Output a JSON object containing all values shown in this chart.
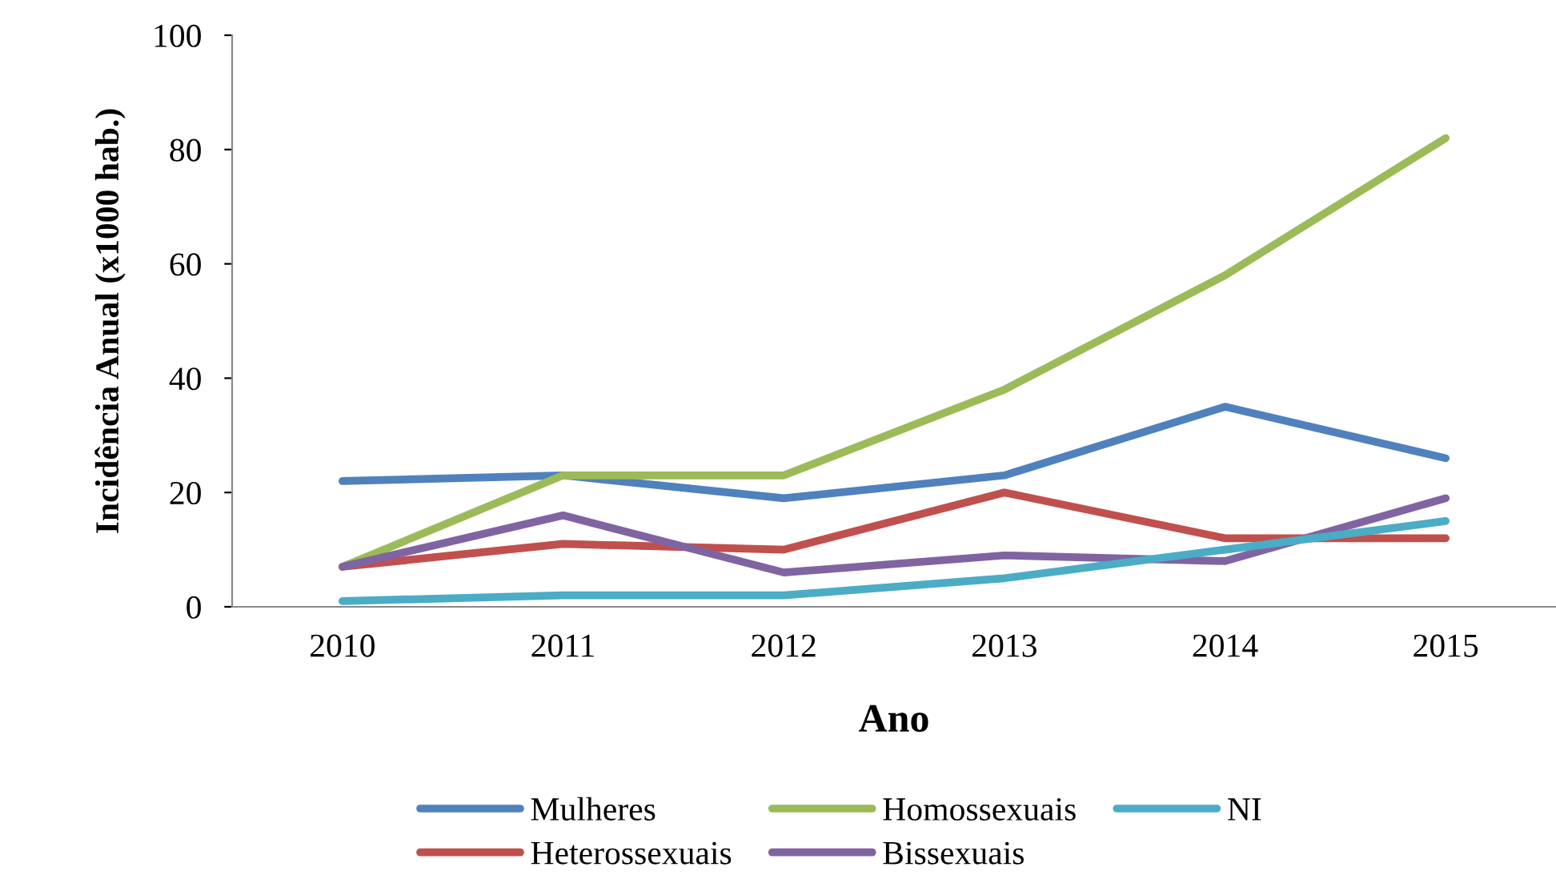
{
  "chart_data": {
    "type": "line",
    "xlabel": "Ano",
    "ylabel": "Incidência Anual (x1000 hab.)",
    "categories": [
      "2010",
      "2011",
      "2012",
      "2013",
      "2014",
      "2015"
    ],
    "series": [
      {
        "name": "Mulheres",
        "color": "#4f81bd",
        "values": [
          22,
          23,
          19,
          23,
          35,
          26
        ]
      },
      {
        "name": "Heterossexuais",
        "color": "#c0504d",
        "values": [
          7,
          11,
          10,
          20,
          12,
          12
        ]
      },
      {
        "name": "Homossexuais",
        "color": "#9bbb59",
        "values": [
          7,
          23,
          23,
          38,
          58,
          82
        ]
      },
      {
        "name": "Bissexuais",
        "color": "#8064a2",
        "values": [
          7,
          16,
          6,
          9,
          8,
          19
        ]
      },
      {
        "name": "NI",
        "color": "#4bacc6",
        "values": [
          1,
          2,
          2,
          5,
          10,
          15
        ]
      }
    ],
    "ylim": [
      0,
      100
    ],
    "yticks": [
      0,
      20,
      40,
      60,
      80,
      100
    ],
    "grid": false,
    "legend": "bottom",
    "marker": "none",
    "line_style": "solid"
  }
}
